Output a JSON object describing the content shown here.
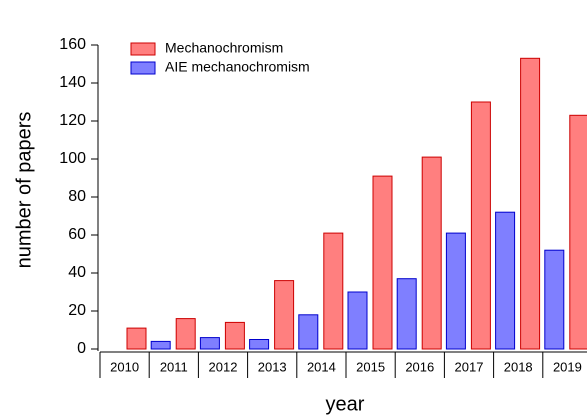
{
  "chart_data": {
    "type": "bar",
    "x_label": "year",
    "y_label": "number of papers",
    "categories": [
      "2010",
      "2011",
      "2012",
      "2013",
      "2014",
      "2015",
      "2016",
      "2017",
      "2018",
      "2019"
    ],
    "series": [
      {
        "name": "AIE mechanochromism",
        "color": "#7f7fff",
        "values": [
          0,
          4,
          6,
          5,
          18,
          30,
          37,
          61,
          72,
          52
        ]
      },
      {
        "name": "Mechanochromism",
        "color": "#ff7f7f",
        "values": [
          11,
          16,
          14,
          36,
          61,
          91,
          101,
          130,
          153,
          123
        ]
      }
    ],
    "ylim": [
      0,
      160
    ],
    "yticks": [
      0,
      20,
      40,
      60,
      80,
      100,
      120,
      140,
      160
    ]
  }
}
